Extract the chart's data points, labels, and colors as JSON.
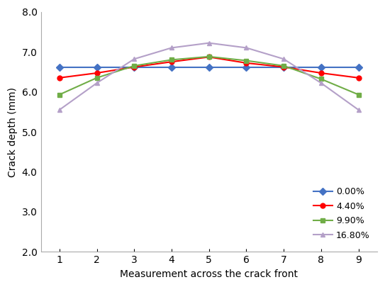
{
  "x": [
    1,
    2,
    3,
    4,
    5,
    6,
    7,
    8,
    9
  ],
  "series": [
    {
      "label": "0.00%",
      "color": "#4472C4",
      "marker": "D",
      "markersize": 5,
      "values": [
        6.62,
        6.62,
        6.62,
        6.62,
        6.62,
        6.62,
        6.62,
        6.62,
        6.62
      ]
    },
    {
      "label": "4.40%",
      "color": "#FF0000",
      "marker": "o",
      "markersize": 5,
      "values": [
        6.35,
        6.47,
        6.62,
        6.75,
        6.87,
        6.72,
        6.62,
        6.47,
        6.35
      ]
    },
    {
      "label": "9.90%",
      "color": "#70AD47",
      "marker": "s",
      "markersize": 5,
      "values": [
        5.93,
        6.35,
        6.65,
        6.8,
        6.88,
        6.78,
        6.65,
        6.32,
        5.93
      ]
    },
    {
      "label": "16.80%",
      "color": "#B4A0C8",
      "marker": "^",
      "markersize": 5,
      "values": [
        5.55,
        6.22,
        6.82,
        7.1,
        7.22,
        7.1,
        6.82,
        6.22,
        5.55
      ]
    }
  ],
  "xlabel": "Measurement across the crack front",
  "ylabel": "Crack depth (mm)",
  "xlim": [
    0.5,
    9.5
  ],
  "ylim": [
    2.0,
    8.0
  ],
  "yticks": [
    2.0,
    3.0,
    4.0,
    5.0,
    6.0,
    7.0,
    8.0
  ],
  "xticks": [
    1,
    2,
    3,
    4,
    5,
    6,
    7,
    8,
    9
  ],
  "background_color": "#FFFFFF",
  "figsize": [
    5.43,
    4.05
  ],
  "dpi": 100
}
